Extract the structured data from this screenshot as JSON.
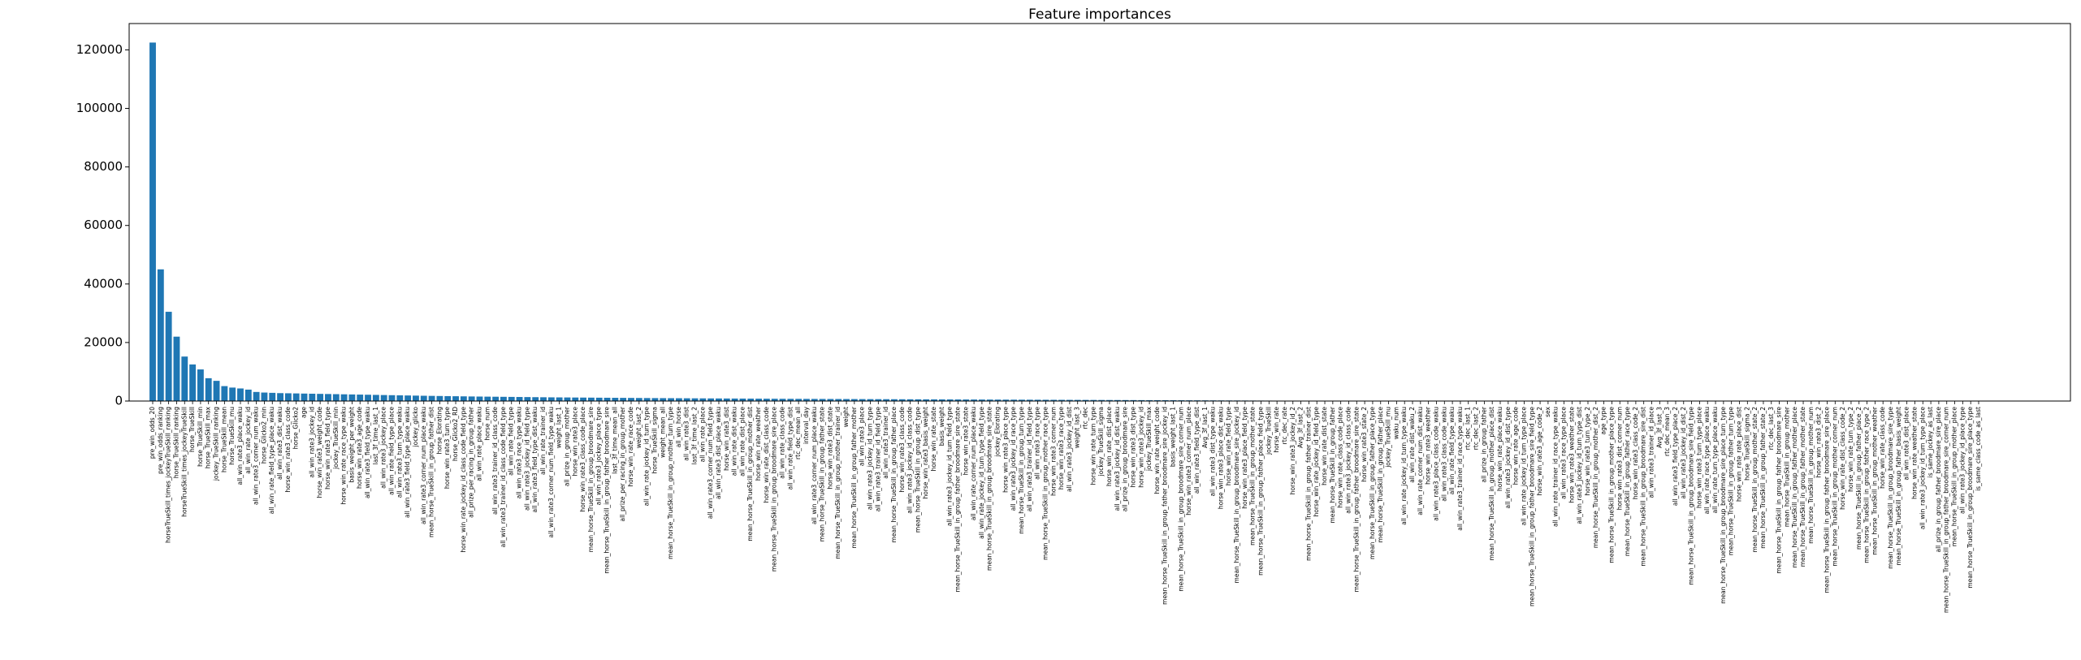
{
  "chart_data": {
    "type": "bar",
    "title": "Feature importances",
    "color": "#1f77b4",
    "ylim": [
      0,
      129000
    ],
    "yticks": [
      0,
      20000,
      40000,
      60000,
      80000,
      100000,
      120000
    ],
    "categories": [
      "pre_win_odds_20",
      "pre_win_odds_ranking",
      "horseTrueSkill_times_jockeyTrueSkill_ranking",
      "horse_TrueSkill_ranking",
      "horseTrueSkill_times_jockeyTrueSkill",
      "horse_TrueSkill",
      "horse_TrueSkill_min",
      "horse_TrueSkill_max",
      "jockey_TrueSkill_ranking",
      "horse_TrueSkill_mean",
      "horse_TrueSkill_mu",
      "all_win_rate3_place_waku",
      "all_win_rate_jockey_id",
      "all_win_rate3_corner_num_waku",
      "horse_Glicko2_min",
      "all_win_rate_field_type_place_waku",
      "all_win_rate3_dist_waku",
      "horse_win_rate3_class_code",
      "horse_Glicko2",
      "age",
      "all_win_rate3_jockey_id",
      "horse_win_rate3_weight_code",
      "horse_win_rate3_field_type",
      "jockey_TrueSkill_min",
      "horse_win_rate_race_type_waku",
      "basis_weight_per_weight",
      "horse_win_rate3_age_code",
      "all_win_rate3_field_type_waku",
      "last_3f_time_last_1",
      "all_win_rate3_jockey_place",
      "all_win_rate_field_type_place",
      "all_win_rate3_turn_type_waku",
      "all_win_rate3_field_type_place_waku",
      "jockey_glicko",
      "all_win_rate3_corner_num_place_waku",
      "mean_horse_TrueSkill_in_group_father_dist",
      "horse_Elorating",
      "horse_win_rate3_turn_type",
      "horse_Glicko2_RD",
      "horse_win_rate_jockey_id_class_code_field_type",
      "all_prize_per_racing_in_group_father",
      "all_win_rate_place_waku",
      "horse_num",
      "all_win_rate3_trainer_id_class_code",
      "all_win_rate3_trainer_id_class_code_field_type",
      "all_win_rate_field_type",
      "all_win_rate3_race_type_waku",
      "all_win_rate3_jockey_id_field_type",
      "all_win_rate3_field_type_dist_waku",
      "all_win_rate_trainer_id",
      "all_win_rate3_corner_num_field_type_waku",
      "weight_last_1",
      "all_prize_in_group_mother",
      "horse_win_rate3_place",
      "horse_win_rate3_class_code_place",
      "mean_horse_TrueSkill_in_group_broodmare_sire",
      "all_win_rate3_jockey_place_type",
      "mean_horse_TrueSkill_in_group_father_broodmare_sire",
      "last_3f_time_mean_all",
      "all_prize_per_racing_in_group_mother",
      "horse_win_rate_race_code",
      "weight_last_2",
      "all_win_rate_jockey_id_turn_type",
      "horse_TrueSkill_sigma",
      "weight_mean_all",
      "mean_horse_TrueSkill_in_group_mother_turn_type",
      "all_win_horse",
      "all_win_rate3_dist",
      "last_3f_time_last_2",
      "all_win_rate_place",
      "all_win_rate3_corner_num_field_type",
      "all_win_rate3_dist_place_waku",
      "horse_win_rate3_dist",
      "all_win_rate_dist_waku",
      "all_win_rate_dist_place",
      "mean_horse_TrueSkill_in_group_mother_dist",
      "horse_win_rate_weather",
      "horse_win_rate_dist_class_code",
      "mean_horse_TrueSkill_in_group_broodmare_sire_place",
      "all_win_rate_class_code",
      "all_win_rate_field_type_dist",
      "rtc_dec_mean_all",
      "interval_day",
      "all_win_rate3_corner_num_place_waku",
      "mean_horse_TrueSkill_in_group_father_state",
      "horse_win_rate3_dist_state",
      "mean_horse_TrueSkill_in_group_mother_trainer_id",
      "weight",
      "mean_horse_TrueSkill_in_group_father_mother",
      "all_win_rate3_place",
      "all_win_rate3_jockey_id_turn_type",
      "all_win_rate3_trainer_id_field_type",
      "all_win_rate3_trainer_id",
      "mean_horse_TrueSkill_in_group_father_place",
      "horse_win_rate3_class_code",
      "all_win_rate3_jockey_id_class_code",
      "mean_horse_TrueSkill_in_group_dist_type",
      "horse_win_rate3_basis_weight",
      "horse_win_rate_state",
      "basis_weight",
      "all_win_rate3_jockey_id_turn_field_type",
      "mean_horse_TrueSkill_in_group_father_broodmare_sire_state",
      "horse_win_rate3_state",
      "all_win_rate_corner_num_place_waku",
      "all_win_rate_jockey_id_turn_type_field_type",
      "mean_horse_TrueSkill_in_group_broodmare_sire_state",
      "jockey_Elorating",
      "horse_win_rate3_place_type",
      "all_win_rate3_jockey_id_race_type",
      "mean_horse_TrueSkill_in_group_turn_type",
      "all_win_rate3_trainer_id_field_type",
      "all_win_rate3_race_type",
      "mean_horse_TrueSkill_in_group_mother_race_type",
      "horse_win_rate3_corner_num",
      "horse_win_rate3_race_type",
      "all_win_rate3_jockey_id_dist",
      "weight_last_3",
      "rtc_dec",
      "horse_win_rate_turn_type",
      "jockey_TrueSkill_sigma",
      "horse_win_rate_dist_place",
      "all_win_rate3_jockey_id_dist_waku",
      "all_prize_in_group_broodmare_sire",
      "horse_win_rate3_dist_type",
      "horse_win_rate3_jockey_id",
      "jockey_TrueSkill_max",
      "horse_win_rate_weight_code",
      "mean_horse_TrueSkill_in_group_father_broodmare_sire_jockey_id",
      "basis_weight_last_1",
      "mean_horse_TrueSkill_in_group_broodmare_sire_corner_num",
      "horse_win_rate3_corner_num_place",
      "all_win_rate3_field_type_dist",
      "Avg_3f_last_1",
      "all_win_rate3_dist_type_waku",
      "horse_win_rate3_place_dist_waku",
      "horse_win_rate_field_type",
      "mean_horse_TrueSkill_in_group_broodmare_sire_jockey_id",
      "horse_win_rate3_place_field_type",
      "mean_horse_TrueSkill_in_group_mother_state",
      "mean_horse_TrueSkill_in_group_father_place_field_type",
      "jockey_TrueSkill",
      "horse_win_rate",
      "rtc_dec_rate",
      "horse_win_rate3_jockey_id_2",
      "Avg_3f_last_2",
      "mean_horse_TrueSkill_in_group_father_trainer_dist",
      "horse_win_rate_jockey_id_field_type",
      "horse_win_rate_dist_state",
      "mean_horse_TrueSkill_in_group_father",
      "horse_win_rate_class_code_place",
      "all_win_rate3_jockey_id_class_code",
      "mean_horse_TrueSkill_in_group_father_broodmare_sire_state",
      "horse_win_rate3_state_2",
      "mean_horse_TrueSkill_in_group_father_place_type",
      "mean_horse_TrueSkill_in_group_father_place",
      "jockey_TrueSkill_mu",
      "waku_num",
      "all_win_rate_jockey_id_turn_type_waku",
      "all_win_rate_dist_waku_2",
      "all_win_rate_corner_num_dist_waku",
      "horse_win_rate3_weather",
      "all_win_rate3_place_class_code_waku",
      "all_win_rate3_class_code_waku",
      "all_win_rate_field_type_waku",
      "all_win_rate3_trainer_id_race_type_waku",
      "rtc_dec_last_1",
      "rtc_dec_last_2",
      "all_prize_in_group_father",
      "mean_horse_TrueSkill_in_group_mother_place_dist",
      "horse_win_rate_place_waku",
      "all_win_rate3_jockey_id_dist_type",
      "horse_win_rate_age_code",
      "all_win_rate_jockey_id_turn_type_place",
      "mean_horse_TrueSkill_in_group_father_broodmare_sire_field_type",
      "horse_win_rate3_age_code_2",
      "sex",
      "all_win_rate_trainer_id_race_type_waku",
      "all_win_rate3_race_type_place",
      "horse_win_rate3_weather_state",
      "all_win_rate3_jockey_id_turn_type_dist",
      "horse_win_rate3_turn_type_2",
      "mean_horse_TrueSkill_in_group_mother_dist_2",
      "age_type",
      "mean_horse_TrueSkill_in_group_mother_place_type",
      "horse_win_rate3_dist_corner_num",
      "mean_horse_TrueSkill_in_group_father_race_type",
      "horse_win_rate3_class_code_2",
      "mean_horse_TrueSkill_in_group_broodmare_sire_dist",
      "all_win_rate3_trainer_id_place",
      "Avg_3f_last_3",
      "rtc_dec_mean_3",
      "all_win_rate3_field_type_place_2",
      "all_win_rate3_jockey_id_dist_2",
      "mean_horse_TrueSkill_in_group_broodmare_sire_field_type",
      "horse_win_rate3_turn_type_place",
      "all_win_rate_race_type_place_waku",
      "all_win_rate_turn_type_place_waku",
      "mean_horse_TrueSkill_in_group_broodmare_sire_place_turn_type",
      "mean_horse_TrueSkill_in_group_father_turn_type",
      "horse_win_rate_rate_place_dist",
      "horse_TrueSkill_sigma_2",
      "mean_horse_TrueSkill_in_group_mother_state_2",
      "mean_horse_TrueSkill_in_group_father_state_2",
      "rtc_dec_last_3",
      "mean_horse_TrueSkill_in_group_father_broodmare_sire",
      "mean_horse_TrueSkill_in_group_mother",
      "mean_horse_TrueSkill_in_group_father_mother_place",
      "mean_horse_TrueSkill_in_group_father_mother_state",
      "mean_horse_TrueSkill_in_group_mother_num",
      "horse_win_rate3_dist_2",
      "mean_horse_TrueSkill_in_group_father_broodmare_sire_place",
      "mean_horse_TrueSkill_in_group_mother_corner_num",
      "horse_win_rate_dist_class_code_2",
      "horse_win_rate_turn_type_2",
      "mean_horse_TrueSkill_in_group_father_place_2",
      "mean_horse_TrueSkill_in_group_father_race_type_2",
      "mean_horse_TrueSkill_in_group_mother_weather",
      "horse_win_rate_class_code",
      "mean_horse_TrueSkill_in_group_broodmare_sire_type",
      "mean_horse_TrueSkill_in_group_father_basis_weight",
      "all_win_rate3_dist_place",
      "horse_win_rate_weather_state",
      "all_win_rate3_jockey_id_turn_type_place",
      "is_same_jockey_as_last",
      "all_prize_in_group_father_broodmare_sire_place",
      "mean_horse_TrueSkill_in_group_father_broodmare_sire_corner_num",
      "mean_horse_TrueSkill_in_group_mother_place",
      "all_win_rate3_jockey_id_place_type",
      "mean_horse_TrueSkill_in_group_broodmare_sire_place_type",
      "is_same_class_code_as_last"
    ],
    "values": [
      122500,
      45000,
      30500,
      22000,
      15200,
      12500,
      10800,
      7800,
      6900,
      5100,
      4600,
      4300,
      3900,
      3100,
      2900,
      2800,
      2700,
      2650,
      2600,
      2550,
      2500,
      2450,
      2400,
      2350,
      2300,
      2250,
      2200,
      2150,
      2100,
      2050,
      2000,
      1950,
      1900,
      1850,
      1800,
      1760,
      1720,
      1680,
      1640,
      1600,
      1560,
      1530,
      1500,
      1470,
      1440,
      1410,
      1380,
      1350,
      1320,
      1290,
      1260,
      1240,
      1220,
      1200,
      1180,
      1160,
      1140,
      1120,
      1100,
      1080,
      1060,
      1040,
      1020,
      1000,
      985,
      970,
      955,
      940,
      925,
      910,
      895,
      880,
      865,
      850,
      835,
      820,
      805,
      790,
      775,
      760,
      750,
      740,
      730,
      720,
      710,
      700,
      690,
      680,
      670,
      660,
      650,
      640,
      630,
      620,
      610,
      600,
      590,
      580,
      570,
      560,
      550,
      540,
      530,
      520,
      510,
      500,
      490,
      480,
      470,
      460,
      450,
      440,
      430,
      420,
      410,
      400,
      390,
      380,
      370,
      360,
      350,
      340,
      330,
      320,
      310,
      300,
      290,
      280,
      270,
      260,
      250,
      240,
      230,
      220,
      210,
      200,
      190,
      180,
      170,
      160,
      150,
      140,
      130,
      120,
      110,
      100,
      95,
      90,
      85,
      80,
      75,
      70,
      65,
      60,
      55,
      50,
      48,
      46,
      44,
      42,
      40,
      38,
      36,
      34,
      32,
      30,
      28,
      26,
      24,
      22,
      20,
      19,
      18,
      17,
      16,
      15,
      14,
      13,
      12,
      11,
      10,
      9,
      9,
      8,
      8,
      7,
      7,
      6,
      6,
      5,
      5,
      5,
      4,
      4,
      4,
      3,
      3,
      3,
      3,
      2,
      2,
      2,
      2,
      2,
      1,
      1,
      1,
      1,
      1,
      1,
      1,
      1,
      1,
      0,
      0,
      0,
      0,
      0,
      0,
      0,
      0,
      0,
      0,
      0,
      0,
      0,
      0,
      0,
      0,
      0
    ]
  }
}
